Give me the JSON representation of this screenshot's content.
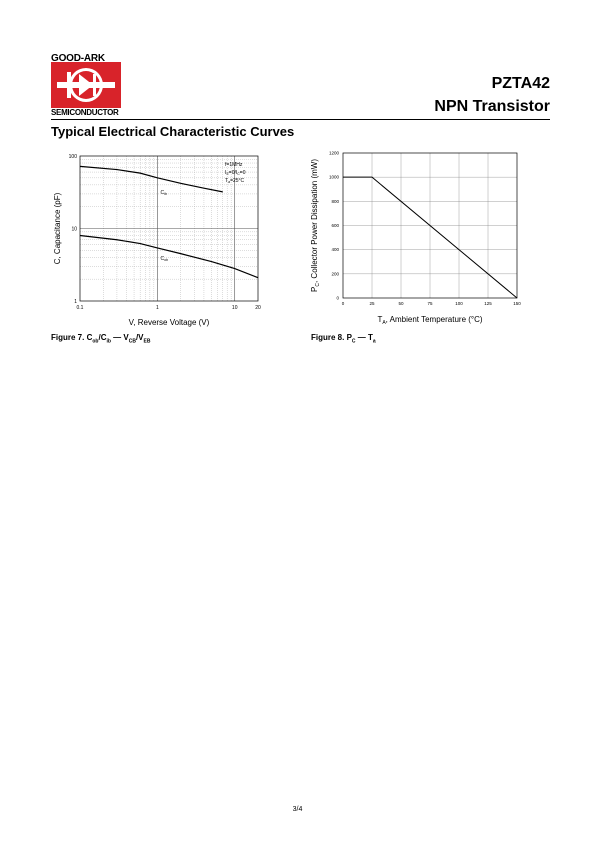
{
  "header": {
    "brand_top": "GOOD-ARK",
    "brand_bottom": "SEMICONDUCTOR",
    "part_number": "PZTA42",
    "device_type": "NPN Transistor"
  },
  "section_title": "Typical Electrical Characteristic Curves",
  "page_number": "3/4",
  "colors": {
    "logo_red": "#d8232a",
    "text": "#000000"
  },
  "chart_data": [
    {
      "type": "line",
      "xscale": "log",
      "yscale": "log",
      "xlim": [
        0.1,
        20
      ],
      "ylim": [
        1,
        100
      ],
      "xticks": [
        "0.1",
        "1",
        "10",
        "20"
      ],
      "yticks": [
        "1",
        "10",
        "100"
      ],
      "xlabel": "V, Reverse Voltage (V)",
      "ylabel": "C, Capacitance (pF)",
      "grid": true,
      "conditions": [
        "f=1MHz",
        "I=0/I=0",
        "T=25°C"
      ],
      "series": [
        {
          "name": "Cib",
          "x": [
            0.1,
            0.3,
            0.6,
            1,
            2,
            4,
            7
          ],
          "y": [
            72,
            65,
            58,
            50,
            42,
            36,
            32
          ]
        },
        {
          "name": "Cob",
          "x": [
            0.1,
            0.3,
            0.6,
            1,
            2,
            5,
            10,
            20
          ],
          "y": [
            8,
            7,
            6.2,
            5.4,
            4.5,
            3.5,
            2.8,
            2.1
          ]
        }
      ],
      "caption": {
        "label": "Figure 7.",
        "text": "Cob/Cib — VCB/VEB"
      }
    },
    {
      "type": "line",
      "xlim": [
        0,
        150
      ],
      "ylim": [
        0,
        1200
      ],
      "xticks": [
        "0",
        "25",
        "50",
        "75",
        "100",
        "125",
        "150"
      ],
      "yticks": [
        "0",
        "200",
        "400",
        "600",
        "800",
        "1000",
        "1200"
      ],
      "xlabel": "TA, Ambient Temperature (°C)",
      "ylabel": "PC, Collector Power Dissipation (mW)",
      "grid": true,
      "series": [
        {
          "name": "",
          "x": [
            0,
            25,
            150
          ],
          "y": [
            1000,
            1000,
            0
          ]
        }
      ],
      "caption": {
        "label": "Figure 8.",
        "text": "PC — Ta"
      }
    }
  ]
}
